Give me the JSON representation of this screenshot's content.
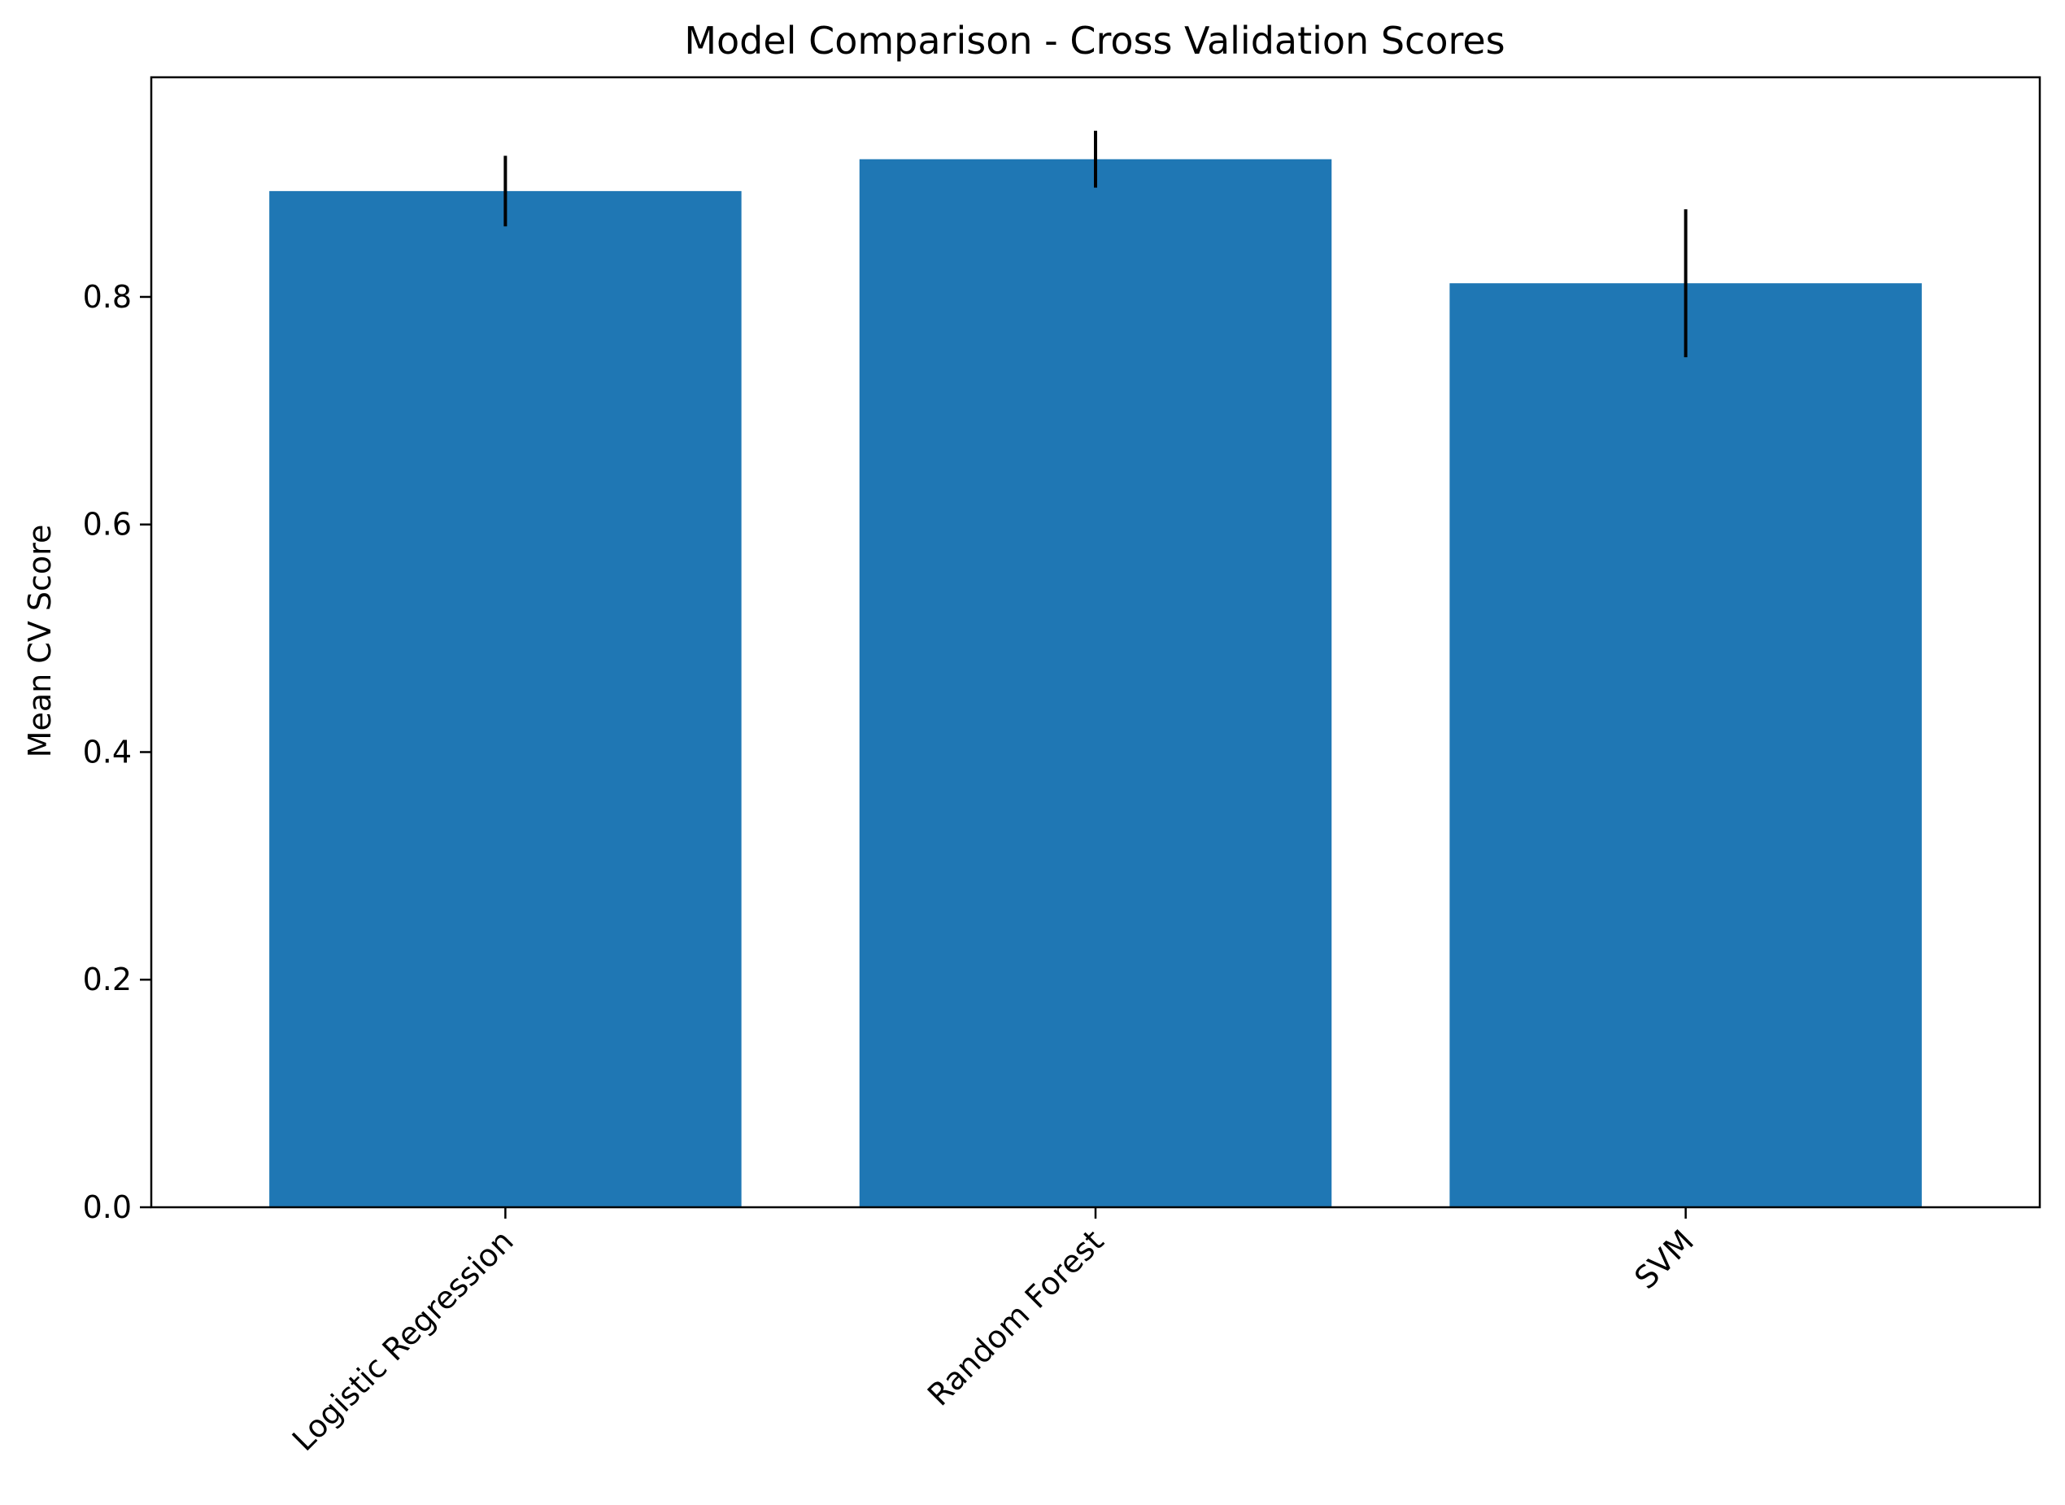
{
  "chart_data": {
    "type": "bar",
    "title": "Model Comparison - Cross Validation Scores",
    "xlabel": "",
    "ylabel": "Mean CV Score",
    "categories": [
      "Logistic Regression",
      "Random Forest",
      "SVM"
    ],
    "values": [
      0.893,
      0.921,
      0.812
    ],
    "errors": [
      0.031,
      0.025,
      0.065
    ],
    "ylim": [
      0,
      0.993
    ],
    "yticks": [
      0.0,
      0.2,
      0.4,
      0.6,
      0.8
    ],
    "ytick_labels": [
      "0.0",
      "0.2",
      "0.4",
      "0.6",
      "0.8"
    ],
    "grid": false,
    "x_tick_rotation": -45,
    "bar_color": "#1f77b4",
    "error_color": "#000000"
  }
}
